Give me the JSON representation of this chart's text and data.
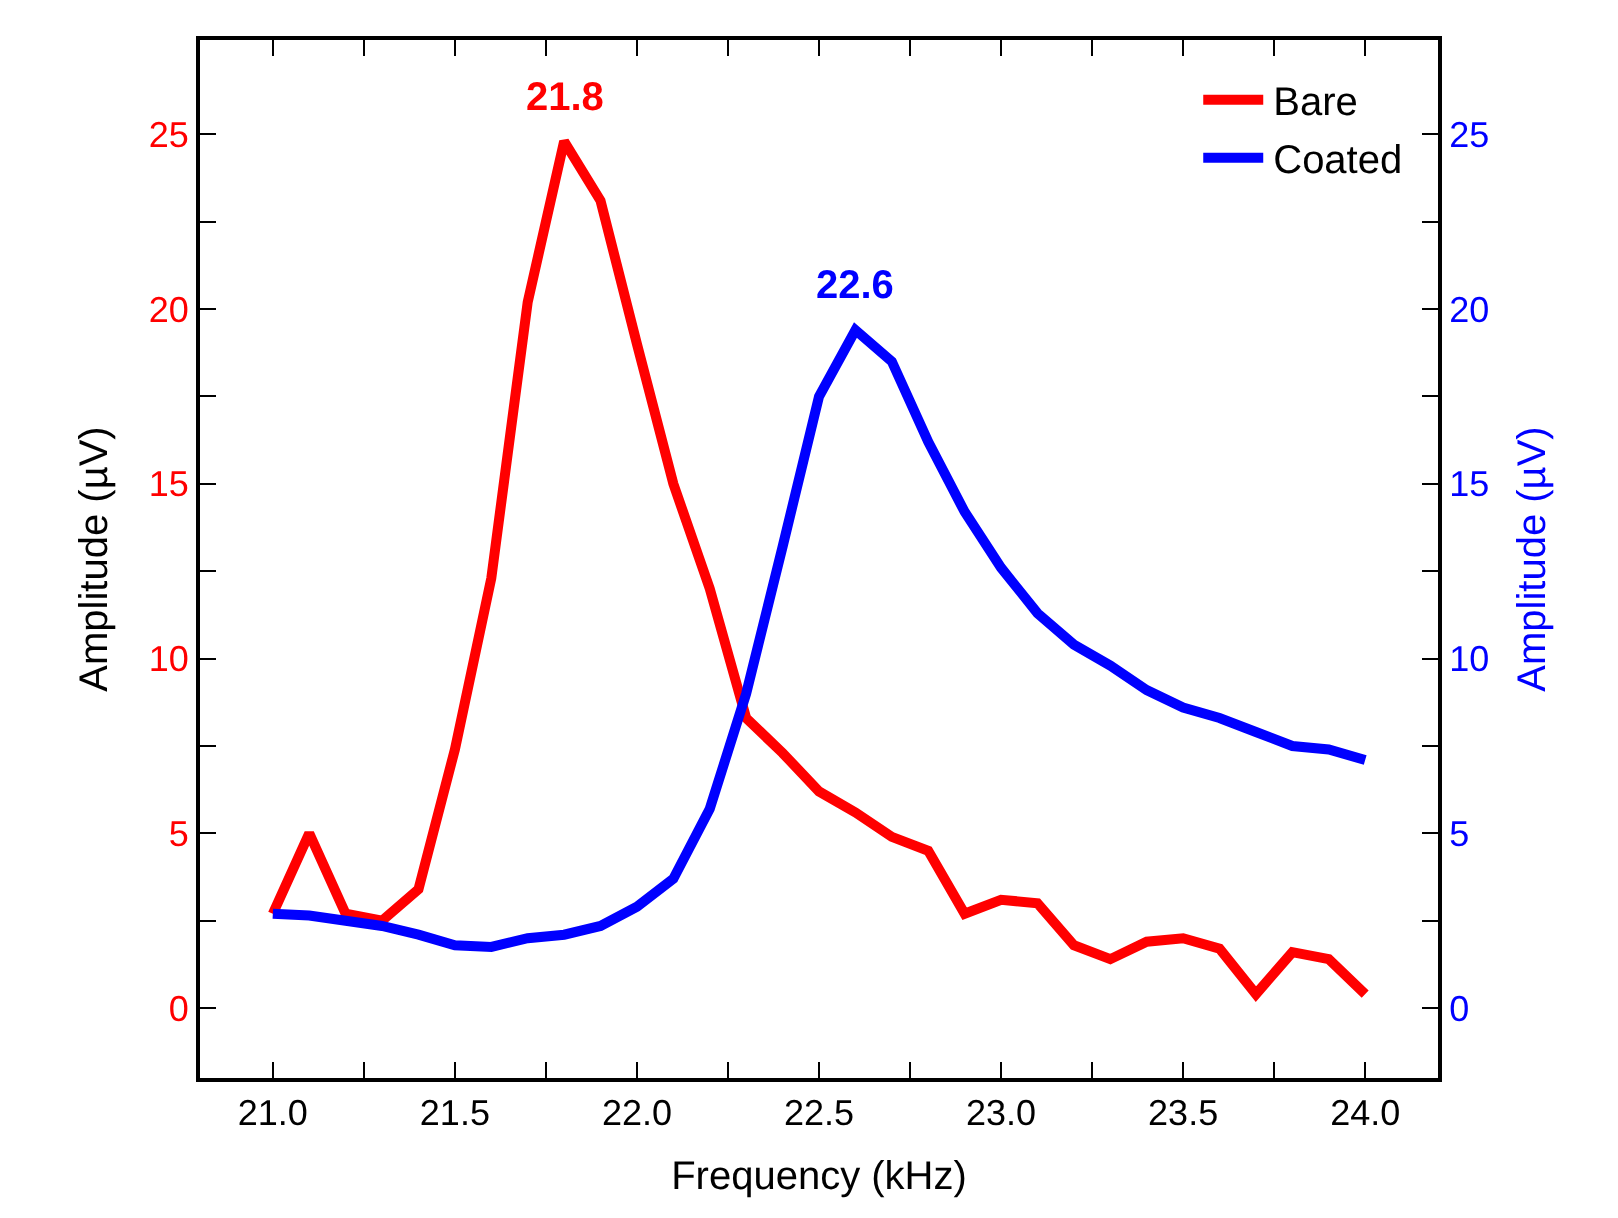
{
  "chart_data": {
    "type": "line",
    "xlabel": "Frequency (kHz)",
    "ylabel": "Amplitude (µV)",
    "y2label": "Amplitude (µV)",
    "x": [
      21.0,
      21.1,
      21.2,
      21.3,
      21.4,
      21.5,
      21.6,
      21.7,
      21.8,
      21.9,
      22.0,
      22.1,
      22.2,
      22.3,
      22.4,
      22.5,
      22.6,
      22.7,
      22.8,
      22.9,
      23.0,
      23.1,
      23.2,
      23.3,
      23.4,
      23.5,
      23.6,
      23.7,
      23.8,
      23.9,
      24.0
    ],
    "series": [
      {
        "name": "Bare",
        "color": "#ff0000",
        "values": [
          2.7,
          5.0,
          2.7,
          2.5,
          3.4,
          7.4,
          12.3,
          20.2,
          24.8,
          23.1,
          19.0,
          15.0,
          12.0,
          8.3,
          7.3,
          6.2,
          5.6,
          4.9,
          4.5,
          2.7,
          3.1,
          3.0,
          1.8,
          1.4,
          1.9,
          2.0,
          1.7,
          0.4,
          1.6,
          1.4,
          0.4
        ]
      },
      {
        "name": "Coated",
        "color": "#0000ff",
        "axis": "y2",
        "values": [
          2.7,
          2.65,
          2.5,
          2.35,
          2.1,
          1.8,
          1.75,
          2.0,
          2.1,
          2.35,
          2.9,
          3.7,
          5.7,
          9.0,
          13.2,
          17.5,
          19.4,
          18.5,
          16.2,
          14.2,
          12.6,
          11.3,
          10.4,
          9.8,
          9.1,
          8.6,
          8.3,
          7.9,
          7.5,
          7.4,
          7.1
        ]
      }
    ],
    "annotations": [
      {
        "text": "21.8",
        "x": 21.8,
        "y": 24.8
      },
      {
        "text": "22.6",
        "x": 22.6,
        "y": 19.4
      }
    ],
    "xlim": [
      20.8,
      24.2
    ],
    "xticks": [
      {
        "value": 21,
        "label": "21.0"
      },
      {
        "value": 21.25,
        "label": null
      },
      21.5,
      {
        "value": 21.75,
        "label": null
      },
      {
        "value": 22,
        "label": "22.0"
      },
      {
        "value": 22.25,
        "label": null
      },
      22.5,
      {
        "value": 22.75,
        "label": null
      },
      {
        "value": 23,
        "label": "23.0"
      },
      {
        "value": 23.25,
        "label": null
      },
      23.5,
      {
        "value": 23.75,
        "label": null
      },
      {
        "value": 24,
        "label": "24.0"
      }
    ],
    "ylim": [
      -2.0,
      27.7
    ],
    "yticks": [
      0,
      {
        "value": 2.5,
        "label": null
      },
      5,
      {
        "value": 7.5,
        "label": null
      },
      10,
      {
        "value": 12.5,
        "label": null
      },
      15,
      {
        "value": 17.5,
        "label": null
      },
      20,
      {
        "value": 22.5,
        "label": null
      },
      25
    ],
    "y2lim": [
      -2.0,
      27.7
    ],
    "y2ticks": [
      0,
      {
        "value": 2.5,
        "label": null
      },
      5,
      {
        "value": 7.5,
        "label": null
      },
      10,
      {
        "value": 12.5,
        "label": null
      },
      15,
      {
        "value": 17.5,
        "label": null
      },
      20,
      {
        "value": 22.5,
        "label": null
      },
      25
    ],
    "legend": "top right",
    "marker": "none",
    "line_style": "solid"
  }
}
